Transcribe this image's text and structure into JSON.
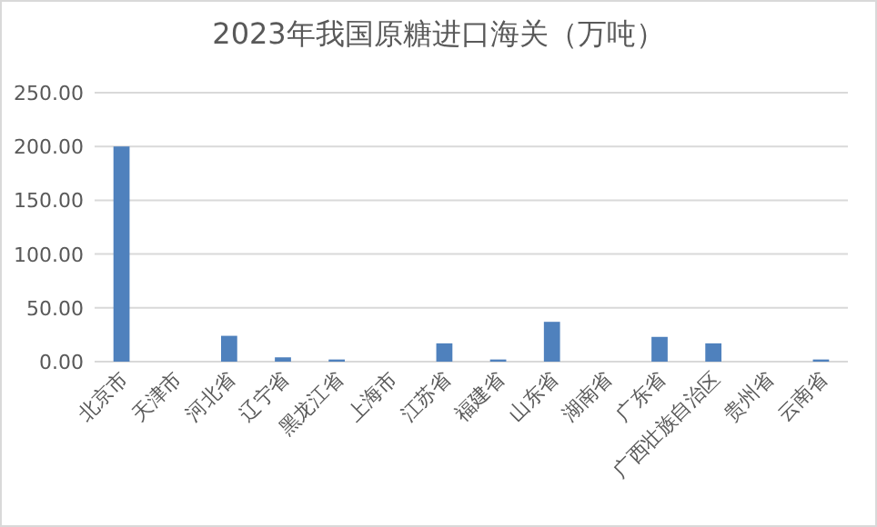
{
  "chart_data": {
    "type": "bar",
    "title": "2023年我国原糖进口海关（万吨）",
    "categories": [
      "北京市",
      "天津市",
      "河北省",
      "辽宁省",
      "黑龙江省",
      "上海市",
      "江苏省",
      "福建省",
      "山东省",
      "湖南省",
      "广东省",
      "广西壮族自治区",
      "贵州省",
      "云南省"
    ],
    "series": [
      {
        "color": "#4f81bd",
        "values": [
          200,
          0,
          24,
          4,
          2,
          0,
          17,
          2,
          37,
          0,
          23,
          17,
          0,
          2
        ]
      }
    ],
    "ylim": [
      0,
      250
    ],
    "yticks": [
      {
        "value": 0,
        "label": "0.00"
      },
      {
        "value": 50,
        "label": "50.00"
      },
      {
        "value": 100,
        "label": "100.00"
      },
      {
        "value": 150,
        "label": "150.00"
      },
      {
        "value": 200,
        "label": "200.00"
      },
      {
        "value": 250,
        "label": "250.00"
      }
    ],
    "grid": "y"
  }
}
